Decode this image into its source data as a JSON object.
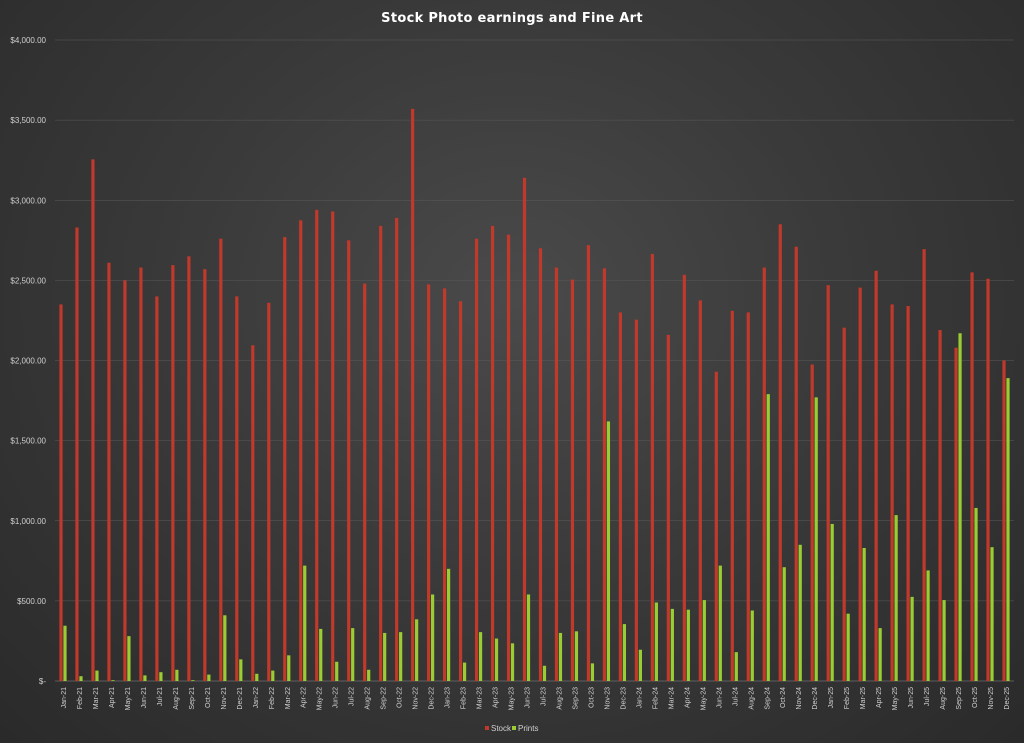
{
  "chart_data": {
    "type": "bar",
    "title": "Stock Photo earnings and Fine Art",
    "xlabel": "",
    "ylabel": "",
    "ylim": [
      0,
      4000
    ],
    "yticks": [
      0,
      500,
      1000,
      1500,
      2000,
      2500,
      3000,
      3500,
      4000
    ],
    "ytick_labels": [
      "$-",
      "$500.00",
      "$1,000.00",
      "$1,500.00",
      "$2,000.00",
      "$2,500.00",
      "$3,000.00",
      "$3,500.00",
      "$4,000.00"
    ],
    "grid": true,
    "legend_position": "bottom",
    "categories": [
      "Jan-21",
      "Feb-21",
      "Mar-21",
      "Apr-21",
      "May-21",
      "Jun-21",
      "Jul-21",
      "Aug-21",
      "Sep-21",
      "Oct-21",
      "Nov-21",
      "Dec-21",
      "Jan-22",
      "Feb-22",
      "Mar-22",
      "Apr-22",
      "May-22",
      "Jun-22",
      "Jul-22",
      "Aug-22",
      "Sep-22",
      "Oct-22",
      "Nov-22",
      "Dec-22",
      "Jan-23",
      "Feb-23",
      "Mar-23",
      "Apr-23",
      "May-23",
      "Jun-23",
      "Jul-23",
      "Aug-23",
      "Sep-23",
      "Oct-23",
      "Nov-23",
      "Dec-23",
      "Jan-24",
      "Feb-24",
      "Mar-24",
      "Apr-24",
      "May-24",
      "Jun-24",
      "Jul-24",
      "Aug-24",
      "Sep-24",
      "Oct-24",
      "Nov-24",
      "Dec-24",
      "Jan-25",
      "Feb-25",
      "Mar-25",
      "Apr-25",
      "May-25",
      "Jun-25",
      "Jul-25",
      "Aug-25",
      "Sep-25",
      "Oct-25",
      "Nov-25",
      "Dec-25"
    ],
    "series": [
      {
        "name": "Stock",
        "color": "#c0392b",
        "values": [
          2350,
          2830,
          3255,
          2610,
          2500,
          2580,
          2400,
          2595,
          2650,
          2570,
          2760,
          2400,
          2095,
          2360,
          2770,
          2875,
          2940,
          2930,
          2750,
          2480,
          2840,
          2890,
          3570,
          2475,
          2450,
          2370,
          2760,
          2840,
          2785,
          3140,
          2700,
          2580,
          2505,
          2720,
          2575,
          2300,
          2255,
          2665,
          2160,
          2535,
          2375,
          1930,
          2310,
          2300,
          2580,
          2850,
          2710,
          1975,
          2470,
          2205,
          2455,
          2560,
          2350,
          2340,
          2695,
          2190,
          2080,
          2550,
          2510,
          2000
        ]
      },
      {
        "name": "Prints",
        "color": "#9acd32",
        "values": [
          345,
          30,
          65,
          5,
          280,
          35,
          55,
          70,
          5,
          40,
          410,
          135,
          45,
          65,
          160,
          720,
          325,
          120,
          330,
          70,
          300,
          305,
          385,
          540,
          700,
          115,
          305,
          265,
          235,
          540,
          95,
          300,
          310,
          110,
          1620,
          355,
          195,
          490,
          450,
          445,
          505,
          720,
          180,
          440,
          1790,
          710,
          850,
          1770,
          980,
          420,
          830,
          330,
          1035,
          525,
          690,
          505,
          2170,
          1080,
          835,
          1890
        ]
      }
    ]
  }
}
